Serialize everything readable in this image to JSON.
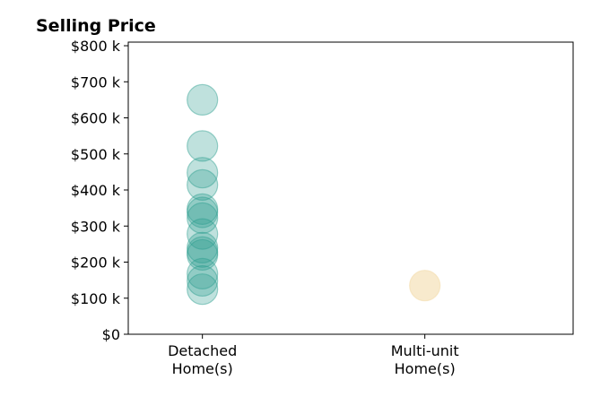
{
  "chart_data": {
    "type": "scatter",
    "title": "Selling Price",
    "xlabel": "",
    "ylabel": "",
    "categories": [
      [
        "Detached",
        "Home(s)"
      ],
      [
        "Multi-unit",
        "Home(s)"
      ]
    ],
    "xlim": [
      -1,
      2
    ],
    "ylim": [
      0,
      810000
    ],
    "y_ticks": [
      0,
      100000,
      200000,
      300000,
      400000,
      500000,
      600000,
      700000,
      800000
    ],
    "y_tick_labels": [
      "$0",
      "$100 k",
      "$200 k",
      "$300 k",
      "$400 k",
      "$500 k",
      "$600 k",
      "$700 k",
      "$800 k"
    ],
    "grid": false,
    "legend": "none",
    "series": [
      {
        "category_index": 0,
        "color": "#2a9d8f",
        "values": [
          650000,
          522000,
          448000,
          414000,
          347000,
          338000,
          322000,
          278000,
          240000,
          228000,
          220000,
          168000,
          148000,
          125000
        ]
      },
      {
        "category_index": 1,
        "color": "#f3dcab",
        "values": [
          135000
        ]
      }
    ]
  }
}
